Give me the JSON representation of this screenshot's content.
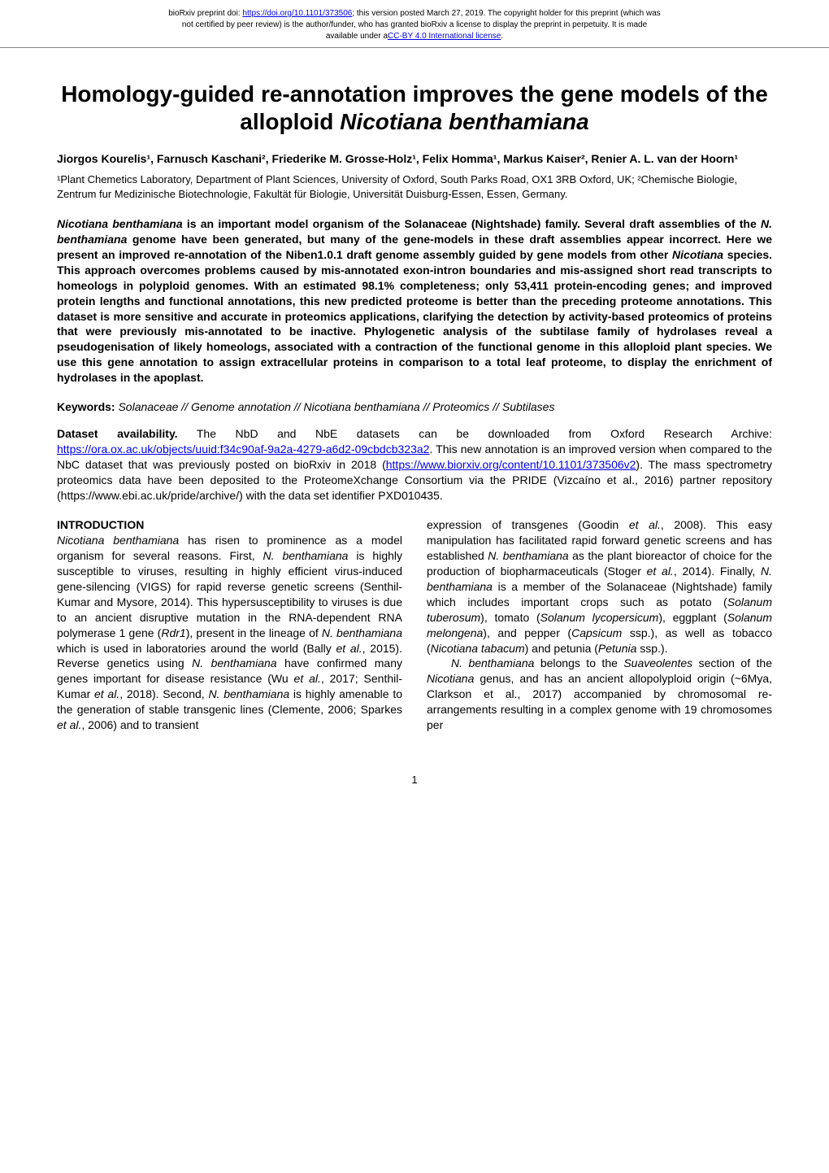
{
  "banner": {
    "line1_prefix": "bioRxiv preprint doi: ",
    "doi_url": "https://doi.org/10.1101/373506",
    "line1_suffix": "; this version posted March 27, 2019. The copyright holder for this preprint (which was",
    "line2": "not certified by peer review) is the author/funder, who has granted bioRxiv a license to display the preprint in perpetuity. It is made",
    "line3_prefix": "available under a",
    "license_text": "CC-BY 4.0 International license",
    "line3_suffix": "."
  },
  "title": "Homology-guided re-annotation improves the gene models of the alloploid Nicotiana benthamiana",
  "authors": "Jiorgos Kourelis¹, Farnusch Kaschani², Friederike M. Grosse-Holz¹, Felix Homma¹, Markus Kaiser², Renier A. L. van der Hoorn¹",
  "affiliations": "¹Plant Chemetics Laboratory, Department of Plant Sciences, University of Oxford, South Parks Road, OX1 3RB Oxford, UK; ²Chemische Biologie, Zentrum fur Medizinische Biotechnologie, Fakultät für Biologie, Universität Duisburg-Essen, Essen, Germany.",
  "abstract": "Nicotiana benthamiana is an important model organism of the Solanaceae (Nightshade) family. Several draft assemblies of the N. benthamiana genome have been generated, but many of the gene-models in these draft assemblies appear incorrect. Here we present an improved re-annotation of the Niben1.0.1 draft genome assembly guided by gene models from other Nicotiana species. This approach overcomes problems caused by mis-annotated exon-intron boundaries and mis-assigned short read transcripts to homeologs in polyploid genomes. With an estimated 98.1% completeness; only 53,411 protein-encoding genes; and improved protein lengths and functional annotations, this new predicted proteome is better than the preceding proteome annotations. This dataset is more sensitive and accurate in proteomics applications, clarifying the detection by activity-based proteomics of proteins that were previously mis-annotated to be inactive. Phylogenetic analysis of the subtilase family of hydrolases reveal a pseudogenisation of likely homeologs, associated with a contraction of the functional genome in this alloploid plant species. We use this gene annotation to assign extracellular proteins in comparison to a total leaf proteome, to display the enrichment of hydrolases in the apoplast.",
  "keywords": {
    "label": "Keywords:",
    "text": "Solanaceae // Genome annotation // Nicotiana benthamiana // Proteomics // Subtilases"
  },
  "dataset": {
    "label": "Dataset availability.",
    "text1": " The NbD and NbE datasets can be downloaded from Oxford Research Archive: ",
    "link1": "https://ora.ox.ac.uk/objects/uuid:f34c90af-9a2a-4279-a6d2-09cbdcb323a2",
    "text2": ". This new annotation is an improved version when compared to the NbC dataset that was previously posted on bioRxiv in 2018 (",
    "link2": "https://www.biorxiv.org/content/10.1101/373506v2",
    "text3": "). The mass spectrometry proteomics data have been deposited to the ProteomeXchange Consortium via the PRIDE (Vizcaíno et al., 2016) partner repository (https://www.ebi.ac.uk/pride/archive/) with the data set identifier PXD010435."
  },
  "introduction": {
    "heading": "INTRODUCTION",
    "left_para": "Nicotiana benthamiana has risen to prominence as a model organism for several reasons. First, N. benthamiana is highly susceptible to viruses, resulting in highly efficient virus-induced gene-silencing (VIGS) for rapid reverse genetic screens (Senthil-Kumar and Mysore, 2014). This hypersusceptibility to viruses is due to an ancient disruptive mutation in the RNA-dependent RNA polymerase 1 gene (Rdr1), present in the lineage of N. benthamiana which is used in laboratories around the world (Bally et al., 2015). Reverse genetics using N. benthamiana have confirmed many genes important for disease resistance (Wu et al., 2017; Senthil-Kumar et al., 2018). Second, N. benthamiana is highly amenable to the generation of stable transgenic lines (Clemente, 2006; Sparkes et al., 2006) and to transient",
    "right_para1": "expression of transgenes (Goodin et al., 2008). This easy manipulation has facilitated rapid forward genetic screens and has established N. benthamiana as the plant bioreactor of choice for the production of biopharmaceuticals (Stoger et al., 2014). Finally, N. benthamiana is a member of the Solanaceae (Nightshade) family which includes important crops such as potato (Solanum tuberosum), tomato (Solanum lycopersicum), eggplant (Solanum melongena), and pepper (Capsicum ssp.), as well as tobacco (Nicotiana tabacum) and petunia (Petunia ssp.).",
    "right_para2": "N. benthamiana belongs to the Suaveolentes section of the Nicotiana genus, and has an ancient allopolyploid origin (~6Mya, Clarkson et al., 2017) accompanied by chromosomal re-arrangements resulting in a complex genome with 19 chromosomes per"
  },
  "page_number": "1"
}
